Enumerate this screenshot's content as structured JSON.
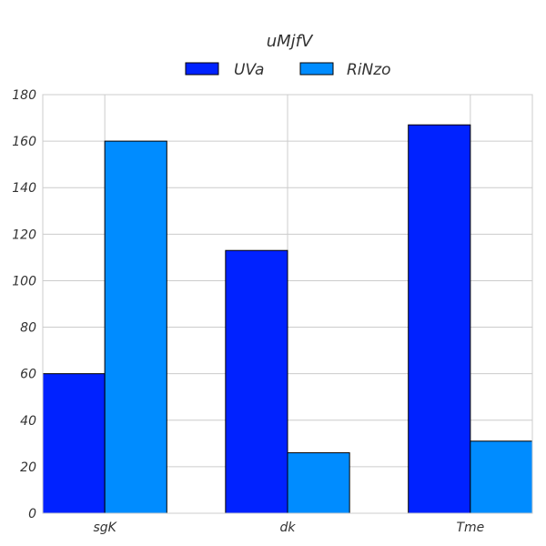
{
  "chart_data": {
    "type": "bar",
    "title": "uMjfV",
    "xlabel": "",
    "ylabel": "",
    "categories": [
      "sgK",
      "dk",
      "Tme"
    ],
    "series": [
      {
        "name": "UVa",
        "values": [
          60,
          113,
          167
        ],
        "color": "#0022ff"
      },
      {
        "name": "RiNzo",
        "values": [
          160,
          26,
          31
        ],
        "color": "#008cff"
      }
    ],
    "ylim": [
      0,
      180
    ],
    "yticks": [
      0,
      20,
      40,
      60,
      80,
      100,
      120,
      140,
      160,
      180
    ],
    "grid": true,
    "legend_position": "top-center"
  }
}
